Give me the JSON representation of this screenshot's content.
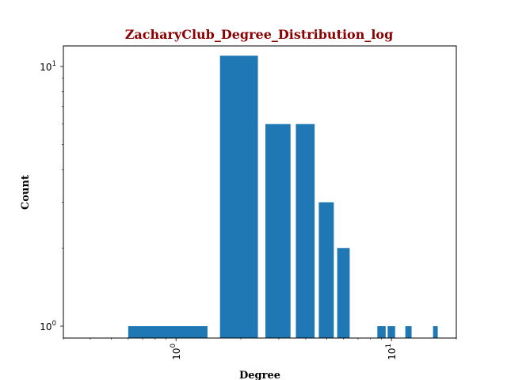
{
  "chart_data": {
    "type": "bar",
    "title": "ZacharyClub_Degree_Distribution_log",
    "xlabel": "Degree",
    "ylabel": "Count",
    "xscale": "log",
    "yscale": "log",
    "xlim": [
      0.3,
      20
    ],
    "ylim": [
      0.9,
      12
    ],
    "grid": false,
    "bar_color": "#1f77b4",
    "x_ticks": [
      {
        "value": 1,
        "base": "10",
        "exp": "0"
      },
      {
        "value": 10,
        "base": "10",
        "exp": "1"
      }
    ],
    "y_ticks": [
      {
        "value": 1,
        "base": "10",
        "exp": "0"
      },
      {
        "value": 10,
        "base": "10",
        "exp": "1"
      }
    ],
    "bars": [
      {
        "x": 1,
        "value": 1
      },
      {
        "x": 2,
        "value": 11
      },
      {
        "x": 3,
        "value": 6
      },
      {
        "x": 4,
        "value": 6
      },
      {
        "x": 5,
        "value": 3
      },
      {
        "x": 6,
        "value": 2
      },
      {
        "x": 9,
        "value": 1
      },
      {
        "x": 10,
        "value": 1
      },
      {
        "x": 12,
        "value": 1
      },
      {
        "x": 16,
        "value": 1
      }
    ]
  }
}
